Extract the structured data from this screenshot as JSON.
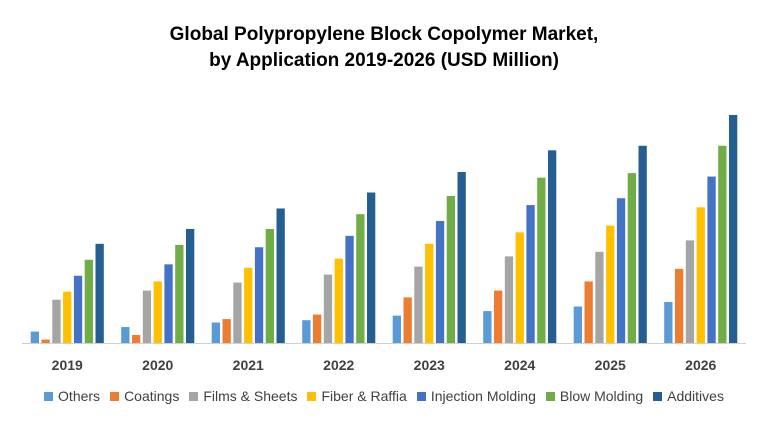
{
  "chart_data": {
    "type": "bar",
    "title": "Global Polypropylene Block Copolymer Market,",
    "subtitle": "by Application 2019-2026 (USD Million)",
    "xlabel": "",
    "ylabel": "",
    "categories": [
      "2019",
      "2020",
      "2021",
      "2022",
      "2023",
      "2024",
      "2025",
      "2026"
    ],
    "ylim": [
      0,
      100
    ],
    "grid": false,
    "legend_position": "bottom",
    "series": [
      {
        "name": "Others",
        "color": "#5B9BD5",
        "values": [
          5,
          7,
          9,
          10,
          12,
          14,
          16,
          18
        ]
      },
      {
        "name": "Coatings",
        "color": "#ED7D31",
        "values": [
          1.5,
          3.5,
          10.5,
          12.5,
          20,
          23,
          27,
          32.5
        ]
      },
      {
        "name": "Films & Sheets",
        "color": "#A5A5A5",
        "values": [
          19,
          23,
          26.5,
          30,
          33.5,
          38,
          40,
          45
        ]
      },
      {
        "name": "Fiber & Raffia",
        "color": "#FFC000",
        "values": [
          22.5,
          27,
          33,
          37,
          43.5,
          48.5,
          51.5,
          59.5
        ]
      },
      {
        "name": "Injection Molding",
        "color": "#4472C4",
        "values": [
          29.5,
          34.5,
          42,
          47,
          53.5,
          60.5,
          63.5,
          73
        ]
      },
      {
        "name": "Blow Molding",
        "color": "#70AD47",
        "values": [
          36.5,
          43,
          50,
          56.5,
          64.5,
          72.5,
          74.5,
          86.5
        ]
      },
      {
        "name": "Additives",
        "color": "#255E91",
        "values": [
          43.5,
          50,
          59,
          66,
          75,
          84.5,
          86.5,
          100
        ]
      }
    ]
  }
}
